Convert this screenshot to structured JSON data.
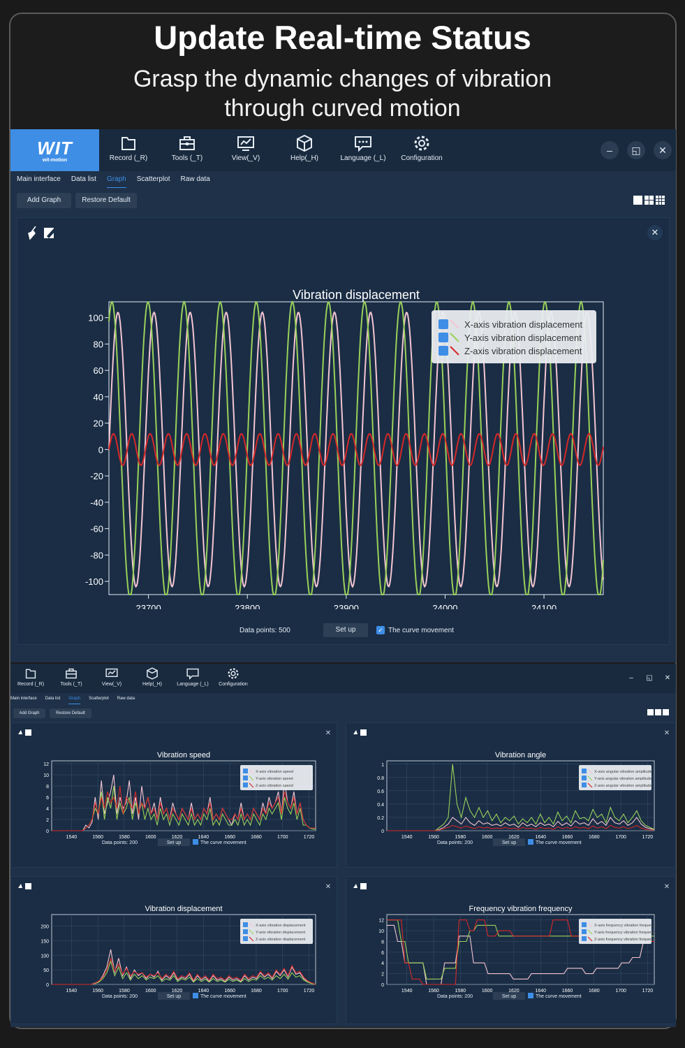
{
  "hero": {
    "title": "Update Real-time Status",
    "subtitle_line1": "Grasp the dynamic changes of vibration",
    "subtitle_line2": "through curved motion"
  },
  "logo": {
    "text": "WIT",
    "sub": "wit-motion"
  },
  "toolbar": {
    "record": "Record (_R)",
    "tools": "Tools (_T)",
    "view": "View(_V)",
    "help": "Help(_H)",
    "language": "Language (_L)",
    "configuration": "Configuration"
  },
  "toolbar_small": {
    "record": "Record (_R)",
    "tools": "Tools (_T)",
    "view": "View(_V)",
    "help": "Help(_H)",
    "language": "Language (_L)",
    "configuration": "Configuration"
  },
  "window_controls": {
    "minimize": "–",
    "restore": "◱",
    "close": "✕"
  },
  "tabs": [
    "Main interface",
    "Data list",
    "Graph",
    "Scatterplot",
    "Raw data"
  ],
  "active_tab": "Graph",
  "actions": {
    "add_graph": "Add Graph",
    "restore_default": "Restore Default"
  },
  "main_panel": {
    "data_points_label": "Data points: 500",
    "setup_label": "Set up",
    "curve_movement_label": "The curve movement",
    "curve_movement_checked": true
  },
  "small_panel_footer": {
    "data_points_label": "Data points: 200",
    "setup_label": "Set up",
    "curve_movement_label": "The curve movement"
  },
  "colors": {
    "x_series": "#f4c6d2",
    "y_series": "#9ad15a",
    "z_series": "#d62828",
    "accent": "#3e8ee6",
    "panel_bg": "#1a2d45"
  },
  "chart_data": [
    {
      "type": "line",
      "title": "Vibration displacement",
      "x_ticks": [
        23700,
        23800,
        23900,
        24000,
        24100
      ],
      "xlim": [
        23660,
        24160
      ],
      "ylim": [
        -110,
        112
      ],
      "y_ticks": [
        100,
        80,
        60,
        40,
        20,
        0,
        -20,
        -40,
        -60,
        -80,
        -100
      ],
      "legend_position": "top-right",
      "grid": false,
      "series": [
        {
          "name": "X-axis vibration displacement",
          "amplitude": 104,
          "period": 36.5,
          "phase_deg": 0
        },
        {
          "name": "Y-axis vibration displacement",
          "amplitude": 112,
          "period": 36.5,
          "phase_deg": 60
        },
        {
          "name": "Z-axis vibration displacement",
          "amplitude": 12,
          "period": 18.5,
          "phase_deg": 0
        }
      ]
    },
    {
      "type": "line",
      "title": "Vibration speed",
      "x_ticks": [
        1540,
        1560,
        1580,
        1600,
        1620,
        1640,
        1660,
        1680,
        1700,
        1720
      ],
      "xlim": [
        1525,
        1725
      ],
      "ylim": [
        0,
        12.5
      ],
      "y_ticks": [
        12,
        10,
        8,
        6,
        4,
        2,
        0
      ],
      "legend_position": "top-right",
      "series": [
        {
          "name": "X-axis vibration speed",
          "values": [
            0,
            0,
            0,
            0,
            0,
            0,
            0,
            0,
            0,
            0,
            0,
            1,
            0.5,
            1.5,
            6,
            2,
            9,
            3,
            5,
            7,
            10,
            3,
            6,
            4,
            5,
            9,
            3,
            6,
            2,
            8,
            4,
            6,
            3,
            5,
            2,
            6,
            3,
            4,
            2,
            5,
            3,
            2,
            4,
            3,
            2,
            5,
            2,
            3,
            2,
            4,
            3,
            6,
            2,
            3,
            2,
            4,
            3,
            2,
            1,
            3,
            2,
            5,
            2,
            3,
            2,
            4,
            3,
            2,
            5,
            3,
            6,
            4,
            5,
            7,
            3,
            9,
            5,
            4,
            7,
            3,
            5,
            2,
            1,
            0.5,
            0.5,
            0.5
          ]
        },
        {
          "name": "Y-axis vibration speed",
          "values": [
            0,
            0,
            0,
            0,
            0,
            0,
            0,
            0,
            0,
            0,
            0,
            0.5,
            1,
            2,
            4,
            3,
            7,
            2,
            6,
            4,
            8,
            2,
            5,
            3,
            4,
            6,
            2,
            5,
            3,
            5,
            2,
            4,
            2,
            3,
            1,
            4,
            2,
            3,
            1,
            3,
            2,
            1,
            3,
            2,
            1,
            3,
            1,
            2,
            1,
            3,
            2,
            4,
            1,
            2,
            1,
            3,
            2,
            1,
            1,
            2,
            1,
            3,
            1,
            2,
            1,
            3,
            2,
            1,
            3,
            2,
            4,
            3,
            4,
            5,
            2,
            6,
            4,
            3,
            5,
            2,
            4,
            1,
            1,
            0.5,
            0.3,
            0.3
          ]
        },
        {
          "name": "Z-axis vibration speed",
          "values": [
            0,
            0,
            0,
            0,
            0,
            0,
            0,
            0,
            0,
            0,
            0,
            0.5,
            1,
            2,
            5,
            3,
            6,
            4,
            7,
            5,
            6,
            4,
            8,
            3,
            6,
            5,
            4,
            7,
            3,
            5,
            4,
            6,
            3,
            4,
            2,
            5,
            3,
            4,
            2,
            4,
            3,
            2,
            4,
            3,
            2,
            4,
            2,
            3,
            2,
            4,
            3,
            5,
            2,
            3,
            2,
            4,
            3,
            2,
            2,
            3,
            2,
            4,
            2,
            3,
            2,
            4,
            3,
            2,
            4,
            3,
            5,
            4,
            5,
            6,
            3,
            7,
            5,
            4,
            6,
            3,
            5,
            2,
            1,
            0.5,
            0.5,
            0.5
          ]
        }
      ]
    },
    {
      "type": "line",
      "title": "Vibration angle",
      "x_ticks": [
        1540,
        1560,
        1580,
        1600,
        1620,
        1640,
        1660,
        1680,
        1700,
        1720
      ],
      "xlim": [
        1525,
        1725
      ],
      "ylim": [
        0,
        1.05
      ],
      "y_ticks": [
        1,
        0.8,
        0.6,
        0.4,
        0.2,
        0
      ],
      "legend_position": "top-right",
      "series": [
        {
          "name": "X-axis angular vibration amplitude",
          "values": [
            0,
            0,
            0,
            0,
            0,
            0,
            0,
            0,
            0,
            0,
            0,
            0,
            0.02,
            0.05,
            0.1,
            0.2,
            0.15,
            0.1,
            0.2,
            0.12,
            0.08,
            0.15,
            0.1,
            0.12,
            0.08,
            0.1,
            0.07,
            0.12,
            0.08,
            0.1,
            0.05,
            0.12,
            0.07,
            0.1,
            0.06,
            0.12,
            0.08,
            0.1,
            0.06,
            0.14,
            0.08,
            0.12,
            0.07,
            0.15,
            0.1,
            0.12,
            0.08,
            0.18,
            0.1,
            0.14,
            0.08,
            0.2,
            0.12,
            0.1,
            0.15,
            0.08,
            0.12,
            0.2,
            0.1,
            0.05,
            0.03,
            0.02
          ]
        },
        {
          "name": "Y-axis angular vibration amplitude",
          "values": [
            0,
            0,
            0,
            0,
            0,
            0,
            0,
            0,
            0,
            0,
            0,
            0,
            0.05,
            0.1,
            0.2,
            1.0,
            0.4,
            0.2,
            0.5,
            0.3,
            0.2,
            0.35,
            0.2,
            0.3,
            0.15,
            0.25,
            0.12,
            0.2,
            0.15,
            0.22,
            0.1,
            0.18,
            0.12,
            0.2,
            0.1,
            0.25,
            0.12,
            0.2,
            0.1,
            0.28,
            0.15,
            0.22,
            0.12,
            0.3,
            0.18,
            0.2,
            0.15,
            0.32,
            0.2,
            0.25,
            0.12,
            0.35,
            0.2,
            0.15,
            0.25,
            0.12,
            0.2,
            0.3,
            0.15,
            0.08,
            0.05,
            0.02
          ]
        },
        {
          "name": "Z-axis angular vibration amplitude",
          "values": [
            0,
            0,
            0,
            0,
            0,
            0,
            0,
            0,
            0,
            0,
            0,
            0,
            0.01,
            0.03,
            0.05,
            0.08,
            0.06,
            0.04,
            0.07,
            0.05,
            0.03,
            0.06,
            0.04,
            0.05,
            0.03,
            0.04,
            0.03,
            0.05,
            0.03,
            0.04,
            0.02,
            0.05,
            0.03,
            0.04,
            0.02,
            0.05,
            0.03,
            0.04,
            0.02,
            0.06,
            0.03,
            0.05,
            0.03,
            0.06,
            0.04,
            0.05,
            0.03,
            0.07,
            0.04,
            0.06,
            0.03,
            0.08,
            0.05,
            0.04,
            0.06,
            0.03,
            0.05,
            0.08,
            0.04,
            0.02,
            0.01,
            0.01
          ]
        }
      ]
    },
    {
      "type": "line",
      "title": "Vibration displacement",
      "x_ticks": [
        1540,
        1560,
        1580,
        1600,
        1620,
        1640,
        1660,
        1680,
        1700,
        1720
      ],
      "xlim": [
        1525,
        1725
      ],
      "ylim": [
        0,
        240
      ],
      "y_ticks": [
        200,
        150,
        100,
        50,
        0
      ],
      "legend_position": "top-right",
      "series": [
        {
          "name": "X-axis vibration displacement",
          "values": [
            0,
            0,
            0,
            0,
            0,
            0,
            0,
            0,
            0,
            0,
            0,
            5,
            10,
            30,
            60,
            120,
            40,
            90,
            30,
            60,
            20,
            50,
            30,
            40,
            20,
            35,
            25,
            45,
            15,
            30,
            20,
            40,
            15,
            25,
            20,
            35,
            10,
            30,
            15,
            25,
            10,
            30,
            15,
            20,
            10,
            25,
            15,
            20,
            10,
            30,
            15,
            25,
            20,
            40,
            25,
            35,
            20,
            45,
            30,
            50,
            25,
            60,
            35,
            40,
            20,
            10,
            5,
            0
          ]
        },
        {
          "name": "Y-axis vibration displacement",
          "values": [
            0,
            0,
            0,
            0,
            0,
            0,
            0,
            0,
            0,
            0,
            0,
            3,
            8,
            20,
            40,
            80,
            30,
            60,
            20,
            40,
            15,
            35,
            20,
            30,
            15,
            25,
            20,
            30,
            10,
            20,
            15,
            30,
            10,
            20,
            15,
            25,
            8,
            20,
            10,
            18,
            8,
            20,
            10,
            15,
            8,
            18,
            10,
            15,
            8,
            20,
            10,
            18,
            15,
            30,
            18,
            25,
            15,
            30,
            20,
            35,
            18,
            40,
            25,
            30,
            15,
            8,
            3,
            0
          ]
        },
        {
          "name": "Z-axis vibration displacement",
          "values": [
            0,
            0,
            0,
            0,
            0,
            0,
            0,
            0,
            0,
            0,
            0,
            4,
            12,
            25,
            50,
            90,
            45,
            70,
            35,
            55,
            30,
            45,
            35,
            40,
            25,
            35,
            30,
            40,
            20,
            35,
            25,
            45,
            20,
            30,
            25,
            40,
            15,
            35,
            20,
            30,
            15,
            35,
            20,
            25,
            15,
            30,
            20,
            25,
            15,
            35,
            20,
            30,
            25,
            45,
            30,
            40,
            25,
            50,
            35,
            55,
            30,
            65,
            40,
            45,
            25,
            12,
            5,
            0
          ]
        }
      ]
    },
    {
      "type": "line",
      "title": "Frequency vibration frequency",
      "x_ticks": [
        1540,
        1560,
        1580,
        1600,
        1620,
        1640,
        1660,
        1680,
        1700,
        1720
      ],
      "xlim": [
        1525,
        1725
      ],
      "ylim": [
        0,
        13
      ],
      "y_ticks": [
        12,
        10,
        8,
        6,
        4,
        2,
        0
      ],
      "legend_position": "top-right",
      "series": [
        {
          "name": "X-axis frequency vibration frequency",
          "values": [
            11,
            11,
            11,
            8,
            8,
            4,
            4,
            4,
            4,
            4,
            4,
            0,
            0,
            0,
            0,
            0,
            4,
            4,
            4,
            4,
            9,
            9,
            9,
            9,
            4,
            4,
            4,
            4,
            2,
            2,
            2,
            2,
            2,
            2,
            2,
            1,
            1,
            1,
            1,
            1,
            2,
            2,
            2,
            2,
            2,
            2,
            2,
            2,
            2,
            2,
            3,
            3,
            3,
            3,
            3,
            2,
            2,
            2,
            3,
            3,
            3,
            3,
            3,
            3,
            3,
            4,
            4,
            4,
            5,
            5,
            5,
            8,
            8,
            8,
            8
          ]
        },
        {
          "name": "Y-axis frequency vibration frequency",
          "values": [
            12,
            12,
            12,
            12,
            8,
            8,
            4,
            4,
            4,
            4,
            4,
            1,
            1,
            1,
            1,
            1,
            3,
            3,
            3,
            3,
            8,
            8,
            8,
            10,
            10,
            11,
            11,
            11,
            11,
            11,
            11,
            9,
            9,
            9,
            9,
            9,
            9,
            9,
            9,
            9,
            9,
            9,
            9,
            9,
            9,
            9,
            9,
            9,
            9,
            9,
            9,
            9,
            9,
            9,
            9,
            9,
            9,
            9,
            9,
            9,
            9,
            9,
            9,
            9,
            9,
            9,
            9,
            9,
            9,
            9,
            9,
            9,
            9,
            9,
            9
          ]
        },
        {
          "name": "Z-axis frequency vibration frequency",
          "values": [
            12,
            12,
            12,
            12,
            12,
            4,
            4,
            1,
            1,
            1,
            0,
            0,
            0,
            0,
            0,
            0,
            0,
            0,
            0,
            0,
            12,
            12,
            12,
            10,
            10,
            12,
            12,
            12,
            9,
            9,
            9,
            10,
            10,
            10,
            10,
            9,
            9,
            9,
            9,
            9,
            9,
            9,
            9,
            9,
            9,
            9,
            12,
            12,
            12,
            12,
            12,
            9,
            9,
            9,
            9,
            9,
            9,
            9,
            9,
            9,
            10,
            10,
            10,
            10,
            12,
            12,
            12,
            12,
            12,
            12,
            12,
            12,
            8,
            8,
            8
          ]
        }
      ]
    }
  ]
}
